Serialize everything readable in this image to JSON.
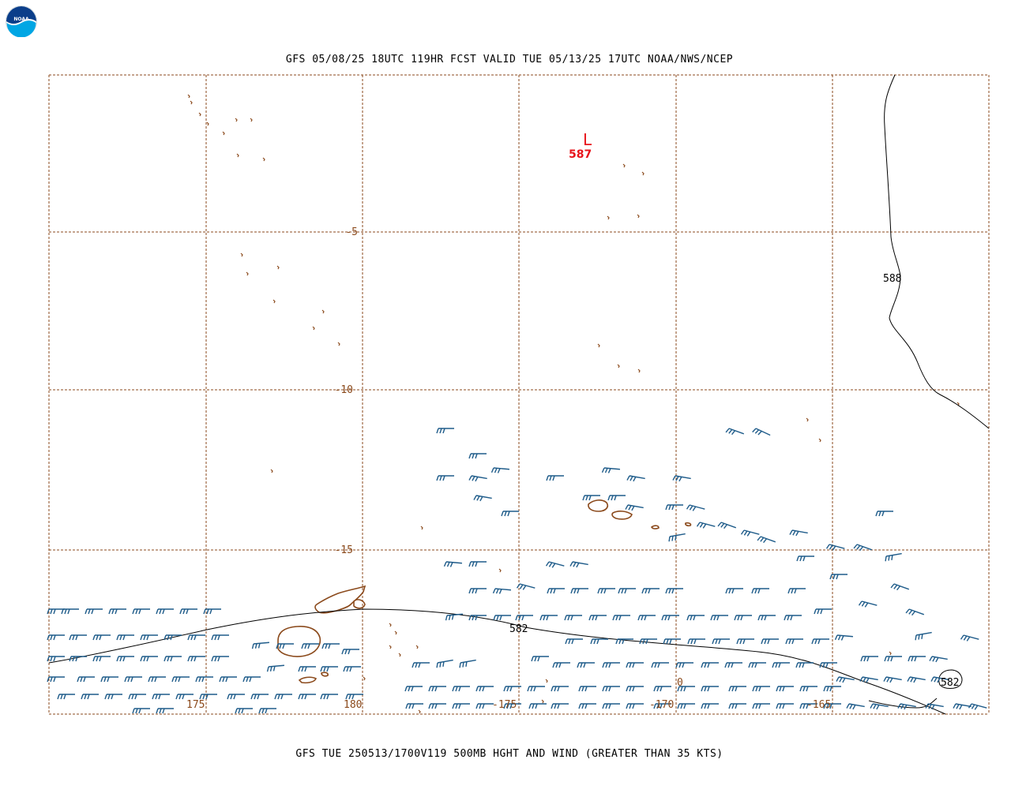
{
  "header": {
    "title": "GFS 05/08/25 18UTC 119HR FCST VALID TUE 05/13/25 17UTC NOAA/NWS/NCEP"
  },
  "footer": {
    "caption": "GFS TUE 250513/1700V119 500MB HGHT AND WIND (GREATER THAN 35 KTS)"
  },
  "logo": {
    "icon": "noaa-logo",
    "text": "NOAA"
  },
  "colors": {
    "grid": "#8b4a1c",
    "coast": "#8b4a1c",
    "wind": "#1f5c8a",
    "contour": "#000000",
    "low": "#e8141b"
  },
  "map": {
    "lat_labels": [
      "-5",
      "-10",
      "-15"
    ],
    "lon_labels": [
      "175",
      "180",
      "-175",
      "-170",
      "-165"
    ],
    "contours": [
      {
        "label": "588"
      },
      {
        "label": "582"
      },
      {
        "label": "582"
      }
    ],
    "low_center": {
      "letter": "L",
      "value": "587"
    },
    "stray_label": "0",
    "wind_barb_icon": "wind-barb-icon"
  }
}
